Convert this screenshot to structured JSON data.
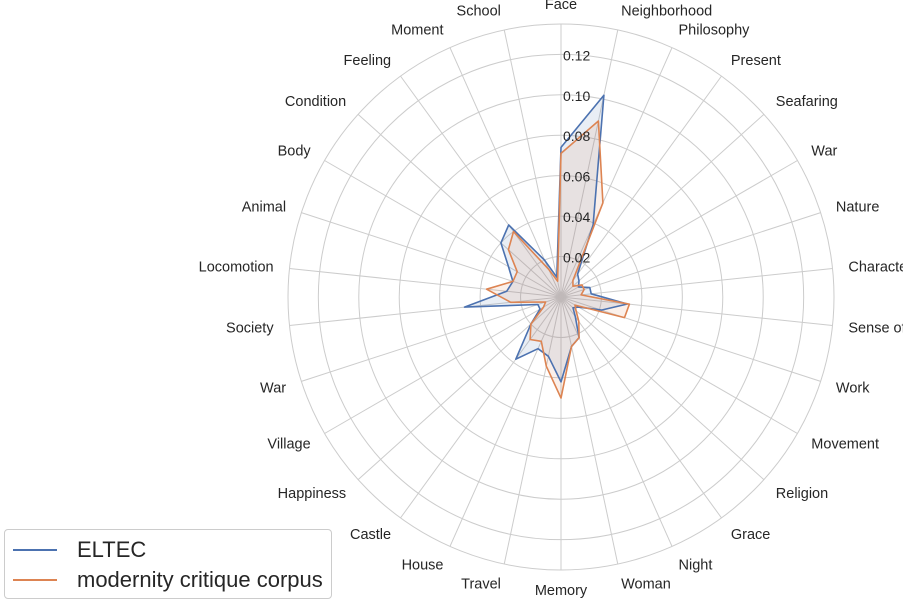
{
  "chart_data": {
    "type": "radar",
    "categories": [
      "Face",
      "Neighborhood",
      "Philosophy",
      "Present",
      "Seafaring",
      "War",
      "Nature",
      "Character",
      "Sense of Time",
      "Work",
      "Movement",
      "Religion",
      "Grace",
      "Night",
      "Woman",
      "Memory",
      "Travel",
      "House",
      "Castle",
      "Happiness",
      "Village",
      "War",
      "Society",
      "Locomotion",
      "Animal",
      "Body",
      "Condition",
      "Feeling",
      "Moment",
      "School"
    ],
    "radial_ticks": [
      0.02,
      0.04,
      0.06,
      0.08,
      0.1,
      0.12
    ],
    "rlim": [
      0,
      0.135
    ],
    "grid": true,
    "legend_position": "lower-left",
    "series": [
      {
        "name": "ELTEC",
        "color": "#4c72b0",
        "values": [
          0.074,
          0.102,
          0.039,
          0.014,
          0.012,
          0.01,
          0.015,
          0.015,
          0.033,
          0.021,
          0.01,
          0.008,
          0.012,
          0.022,
          0.025,
          0.042,
          0.03,
          0.028,
          0.038,
          0.02,
          0.012,
          0.012,
          0.048,
          0.027,
          0.025,
          0.03,
          0.04,
          0.044,
          0.02,
          0.01
        ]
      },
      {
        "name": "modernity critique corpus",
        "color": "#dd8452",
        "values": [
          0.071,
          0.089,
          0.051,
          0.01,
          0.008,
          0.012,
          0.012,
          0.01,
          0.034,
          0.033,
          0.008,
          0.01,
          0.015,
          0.022,
          0.025,
          0.05,
          0.035,
          0.024,
          0.026,
          0.02,
          0.01,
          0.008,
          0.025,
          0.037,
          0.025,
          0.025,
          0.035,
          0.04,
          0.015,
          0.008
        ]
      }
    ]
  }
}
